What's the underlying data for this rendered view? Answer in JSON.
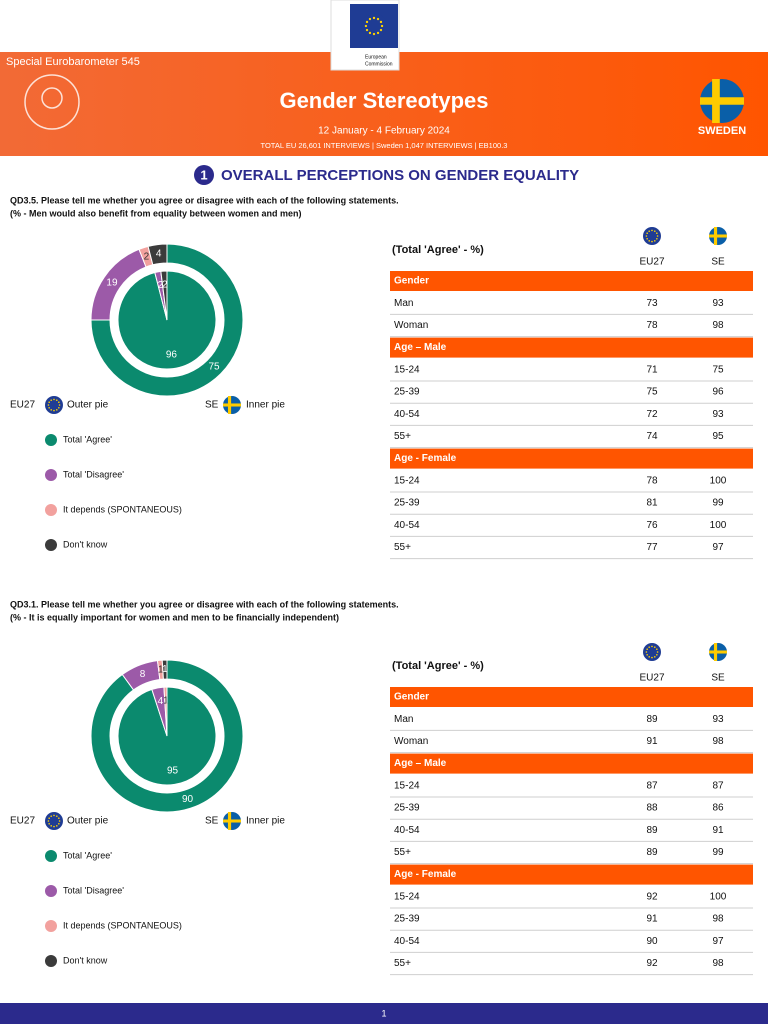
{
  "header": {
    "series_name": "Special Eurobarometer 545",
    "logo_text": [
      "European",
      "Commission"
    ],
    "title": "Gender Stereotypes",
    "dates": "12 January - 4 February 2024",
    "interviews": "TOTAL EU 26,601 INTERVIEWS | Sweden 1,047 INTERVIEWS | EB100.3",
    "country": "SWEDEN"
  },
  "section": {
    "number": "1",
    "title": "OVERALL PERCEPTIONS ON GENDER EQUALITY"
  },
  "chart_data": [
    {
      "type": "pie",
      "question": "QD3.5. Please tell me whether you agree or disagree with each of the following statements.",
      "subtitle": "(% - Men would also benefit from equality between women and men)",
      "categories": [
        "Total 'Agree'",
        "Total 'Disagree'",
        "It depends (SPONTANEOUS)",
        "Don't know"
      ],
      "colors": [
        "#0b8a6e",
        "#9c5aa8",
        "#f2a19e",
        "#3b3b3b"
      ],
      "series": [
        {
          "name": "EU27",
          "ring": "Outer pie",
          "values": [
            75,
            19,
            2,
            4
          ]
        },
        {
          "name": "SE",
          "ring": "Inner pie",
          "values": [
            96,
            2,
            0,
            2
          ]
        }
      ],
      "table": {
        "heading": "(Total 'Agree' - %)",
        "columns": [
          "EU27",
          "SE"
        ],
        "groups": [
          {
            "name": "Gender",
            "rows": [
              {
                "label": "Man",
                "values": [
                  73,
                  93
                ]
              },
              {
                "label": "Woman",
                "values": [
                  78,
                  98
                ]
              }
            ]
          },
          {
            "name": "Age – Male",
            "rows": [
              {
                "label": "15-24",
                "values": [
                  71,
                  75
                ]
              },
              {
                "label": "25-39",
                "values": [
                  75,
                  96
                ]
              },
              {
                "label": "40-54",
                "values": [
                  72,
                  93
                ]
              },
              {
                "label": "55+",
                "values": [
                  74,
                  95
                ]
              }
            ]
          },
          {
            "name": "Age - Female",
            "rows": [
              {
                "label": "15-24",
                "values": [
                  78,
                  100
                ]
              },
              {
                "label": "25-39",
                "values": [
                  81,
                  99
                ]
              },
              {
                "label": "40-54",
                "values": [
                  76,
                  100
                ]
              },
              {
                "label": "55+",
                "values": [
                  77,
                  97
                ]
              }
            ]
          }
        ]
      }
    },
    {
      "type": "pie",
      "question": "QD3.1. Please tell me whether you agree or disagree with each of the following statements.",
      "subtitle": "(% - It is equally important for women and men to be financially independent)",
      "categories": [
        "Total 'Agree'",
        "Total 'Disagree'",
        "It depends (SPONTANEOUS)",
        "Don't know"
      ],
      "colors": [
        "#0b8a6e",
        "#9c5aa8",
        "#f2a19e",
        "#3b3b3b"
      ],
      "series": [
        {
          "name": "EU27",
          "ring": "Outer pie",
          "values": [
            90,
            8,
            1,
            1
          ]
        },
        {
          "name": "SE",
          "ring": "Inner pie",
          "values": [
            95,
            4,
            1,
            0
          ]
        }
      ],
      "table": {
        "heading": "(Total 'Agree' - %)",
        "columns": [
          "EU27",
          "SE"
        ],
        "groups": [
          {
            "name": "Gender",
            "rows": [
              {
                "label": "Man",
                "values": [
                  89,
                  93
                ]
              },
              {
                "label": "Woman",
                "values": [
                  91,
                  98
                ]
              }
            ]
          },
          {
            "name": "Age – Male",
            "rows": [
              {
                "label": "15-24",
                "values": [
                  87,
                  87
                ]
              },
              {
                "label": "25-39",
                "values": [
                  88,
                  86
                ]
              },
              {
                "label": "40-54",
                "values": [
                  89,
                  91
                ]
              },
              {
                "label": "55+",
                "values": [
                  89,
                  99
                ]
              }
            ]
          },
          {
            "name": "Age - Female",
            "rows": [
              {
                "label": "15-24",
                "values": [
                  92,
                  100
                ]
              },
              {
                "label": "25-39",
                "values": [
                  91,
                  98
                ]
              },
              {
                "label": "40-54",
                "values": [
                  90,
                  97
                ]
              },
              {
                "label": "55+",
                "values": [
                  92,
                  98
                ]
              }
            ]
          }
        ]
      }
    }
  ],
  "footer": {
    "page": "1"
  }
}
